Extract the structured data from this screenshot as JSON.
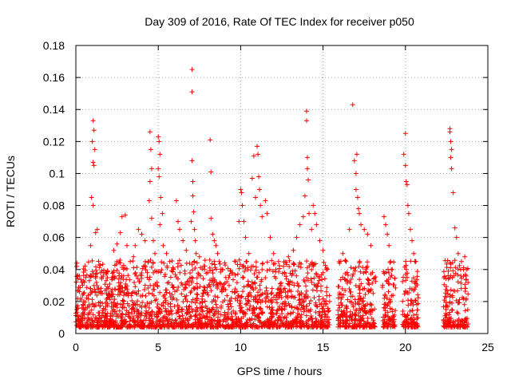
{
  "chart_data": {
    "type": "scatter",
    "title": "Day 309 of 2016, Rate Of TEC Index for receiver p050",
    "xlabel": "GPS time / hours",
    "ylabel": "ROTI / TECUs",
    "xlim": [
      0,
      25
    ],
    "ylim": [
      0,
      0.18
    ],
    "xticks": [
      0,
      5,
      10,
      15,
      20,
      25
    ],
    "yticks": [
      0,
      0.02,
      0.04,
      0.06,
      0.08,
      0.1,
      0.12,
      0.14,
      0.16,
      0.18
    ],
    "xtick_labels": [
      "0",
      "5",
      "10",
      "15",
      "20",
      "25"
    ],
    "ytick_labels": [
      "0",
      "0.02",
      "0.04",
      "0.06",
      "0.08",
      "0.1",
      "0.12",
      "0.14",
      "0.16",
      "0.18"
    ],
    "grid": true,
    "marker": "plus",
    "series": [
      {
        "color": "#ff0000",
        "points": [
          [
            1.05,
            0.133
          ],
          [
            1.1,
            0.127
          ],
          [
            1.0,
            0.12
          ],
          [
            1.15,
            0.115
          ],
          [
            1.05,
            0.107
          ],
          [
            1.1,
            0.105
          ],
          [
            0.95,
            0.085
          ],
          [
            1.05,
            0.08
          ],
          [
            1.3,
            0.065
          ],
          [
            1.2,
            0.063
          ],
          [
            0.9,
            0.055
          ],
          [
            1.45,
            0.043
          ],
          [
            1.5,
            0.038
          ],
          [
            1.25,
            0.032
          ],
          [
            0.6,
            0.035
          ],
          [
            0.3,
            0.022
          ],
          [
            0.05,
            0.015
          ],
          [
            0.15,
            0.009
          ],
          [
            0.5,
            0.012
          ],
          [
            0.8,
            0.018
          ],
          [
            1.6,
            0.025
          ],
          [
            1.8,
            0.015
          ],
          [
            2.0,
            0.024
          ],
          [
            2.2,
            0.035
          ],
          [
            2.3,
            0.052
          ],
          [
            2.5,
            0.056
          ],
          [
            2.7,
            0.063
          ],
          [
            2.8,
            0.073
          ],
          [
            3.0,
            0.074
          ],
          [
            3.1,
            0.055
          ],
          [
            3.3,
            0.045
          ],
          [
            3.5,
            0.048
          ],
          [
            3.6,
            0.055
          ],
          [
            3.8,
            0.065
          ],
          [
            4.0,
            0.062
          ],
          [
            4.2,
            0.058
          ],
          [
            4.4,
            0.045
          ],
          [
            4.5,
            0.126
          ],
          [
            4.55,
            0.115
          ],
          [
            4.6,
            0.103
          ],
          [
            4.5,
            0.095
          ],
          [
            4.45,
            0.083
          ],
          [
            4.6,
            0.072
          ],
          [
            4.7,
            0.058
          ],
          [
            4.8,
            0.05
          ],
          [
            5.0,
            0.123
          ],
          [
            5.05,
            0.12
          ],
          [
            5.1,
            0.112
          ],
          [
            5.0,
            0.103
          ],
          [
            5.05,
            0.098
          ],
          [
            5.15,
            0.085
          ],
          [
            5.25,
            0.075
          ],
          [
            5.1,
            0.068
          ],
          [
            5.3,
            0.055
          ],
          [
            5.5,
            0.05
          ],
          [
            5.7,
            0.045
          ],
          [
            5.9,
            0.04
          ],
          [
            6.1,
            0.083
          ],
          [
            6.2,
            0.07
          ],
          [
            6.3,
            0.065
          ],
          [
            6.5,
            0.058
          ],
          [
            6.7,
            0.052
          ],
          [
            6.9,
            0.044
          ],
          [
            7.05,
            0.165
          ],
          [
            7.05,
            0.151
          ],
          [
            7.05,
            0.108
          ],
          [
            7.1,
            0.095
          ],
          [
            7.1,
            0.086
          ],
          [
            7.15,
            0.076
          ],
          [
            7.0,
            0.07
          ],
          [
            7.2,
            0.065
          ],
          [
            7.25,
            0.058
          ],
          [
            7.3,
            0.05
          ],
          [
            7.5,
            0.048
          ],
          [
            7.8,
            0.04
          ],
          [
            8.0,
            0.038
          ],
          [
            8.15,
            0.121
          ],
          [
            8.2,
            0.101
          ],
          [
            8.2,
            0.072
          ],
          [
            8.3,
            0.062
          ],
          [
            8.4,
            0.058
          ],
          [
            8.5,
            0.055
          ],
          [
            8.6,
            0.05
          ],
          [
            8.7,
            0.045
          ],
          [
            8.9,
            0.04
          ],
          [
            9.1,
            0.035
          ],
          [
            9.3,
            0.03
          ],
          [
            9.5,
            0.038
          ],
          [
            9.7,
            0.045
          ],
          [
            9.9,
            0.07
          ],
          [
            10.0,
            0.09
          ],
          [
            10.05,
            0.088
          ],
          [
            10.1,
            0.08
          ],
          [
            10.2,
            0.07
          ],
          [
            10.3,
            0.06
          ],
          [
            10.5,
            0.05
          ],
          [
            10.7,
            0.097
          ],
          [
            10.8,
            0.111
          ],
          [
            10.9,
            0.085
          ],
          [
            11.0,
            0.117
          ],
          [
            11.05,
            0.112
          ],
          [
            11.1,
            0.098
          ],
          [
            11.15,
            0.09
          ],
          [
            11.2,
            0.08
          ],
          [
            11.3,
            0.073
          ],
          [
            11.5,
            0.083
          ],
          [
            11.6,
            0.075
          ],
          [
            11.8,
            0.06
          ],
          [
            12.0,
            0.05
          ],
          [
            12.3,
            0.045
          ],
          [
            12.6,
            0.042
          ],
          [
            12.9,
            0.048
          ],
          [
            13.2,
            0.052
          ],
          [
            13.4,
            0.06
          ],
          [
            13.6,
            0.068
          ],
          [
            13.8,
            0.073
          ],
          [
            13.9,
            0.086
          ],
          [
            14.0,
            0.139
          ],
          [
            14.0,
            0.133
          ],
          [
            14.05,
            0.11
          ],
          [
            14.05,
            0.103
          ],
          [
            14.1,
            0.096
          ],
          [
            14.15,
            0.075
          ],
          [
            14.3,
            0.065
          ],
          [
            14.4,
            0.08
          ],
          [
            14.5,
            0.075
          ],
          [
            14.6,
            0.068
          ],
          [
            14.8,
            0.058
          ],
          [
            15.0,
            0.052
          ],
          [
            15.2,
            0.04
          ],
          [
            15.4,
            0.02
          ],
          [
            16.2,
            0.05
          ],
          [
            16.4,
            0.045
          ],
          [
            16.6,
            0.065
          ],
          [
            16.8,
            0.143
          ],
          [
            16.9,
            0.108
          ],
          [
            17.0,
            0.1
          ],
          [
            17.05,
            0.112
          ],
          [
            17.0,
            0.09
          ],
          [
            17.1,
            0.085
          ],
          [
            17.15,
            0.078
          ],
          [
            17.2,
            0.075
          ],
          [
            17.3,
            0.068
          ],
          [
            17.5,
            0.065
          ],
          [
            17.7,
            0.062
          ],
          [
            17.9,
            0.055
          ],
          [
            18.0,
            0.038
          ],
          [
            18.7,
            0.073
          ],
          [
            18.8,
            0.068
          ],
          [
            18.9,
            0.062
          ],
          [
            19.0,
            0.055
          ],
          [
            19.1,
            0.045
          ],
          [
            19.2,
            0.04
          ],
          [
            19.9,
            0.112
          ],
          [
            20.0,
            0.125
          ],
          [
            20.0,
            0.105
          ],
          [
            20.05,
            0.095
          ],
          [
            20.1,
            0.093
          ],
          [
            20.15,
            0.08
          ],
          [
            20.2,
            0.075
          ],
          [
            20.3,
            0.065
          ],
          [
            20.4,
            0.058
          ],
          [
            20.5,
            0.05
          ],
          [
            20.6,
            0.045
          ],
          [
            22.7,
            0.128
          ],
          [
            22.7,
            0.126
          ],
          [
            22.75,
            0.12
          ],
          [
            22.8,
            0.115
          ],
          [
            22.75,
            0.11
          ],
          [
            22.8,
            0.103
          ],
          [
            22.9,
            0.088
          ],
          [
            23.0,
            0.066
          ],
          [
            23.1,
            0.06
          ],
          [
            23.2,
            0.05
          ],
          [
            23.4,
            0.045
          ],
          [
            23.6,
            0.048
          ],
          [
            23.7,
            0.04
          ]
        ]
      }
    ]
  }
}
